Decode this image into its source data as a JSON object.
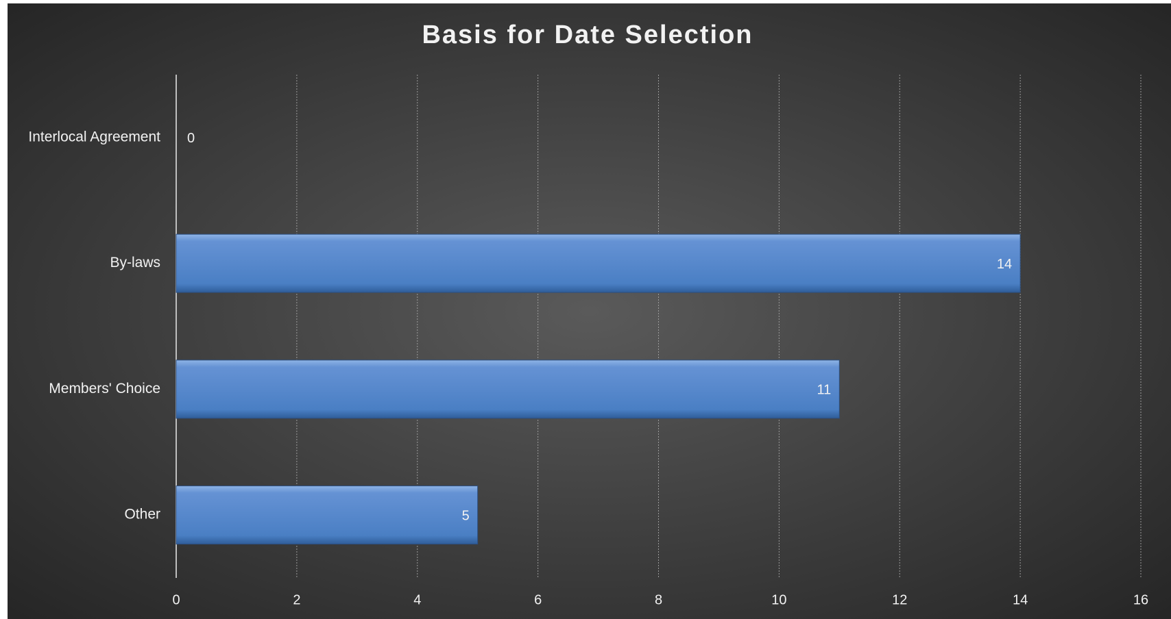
{
  "chart_data": {
    "type": "bar",
    "orientation": "horizontal",
    "title": "Basis for Date Selection",
    "categories": [
      "Interlocal Agreement",
      "By-laws",
      "Members' Choice",
      "Other"
    ],
    "values": [
      0,
      14,
      11,
      5
    ],
    "color": "#4f81c7",
    "xlim": [
      0,
      16
    ],
    "xticks": [
      0,
      2,
      4,
      6,
      8,
      10,
      12,
      14,
      16
    ],
    "grid": true
  }
}
